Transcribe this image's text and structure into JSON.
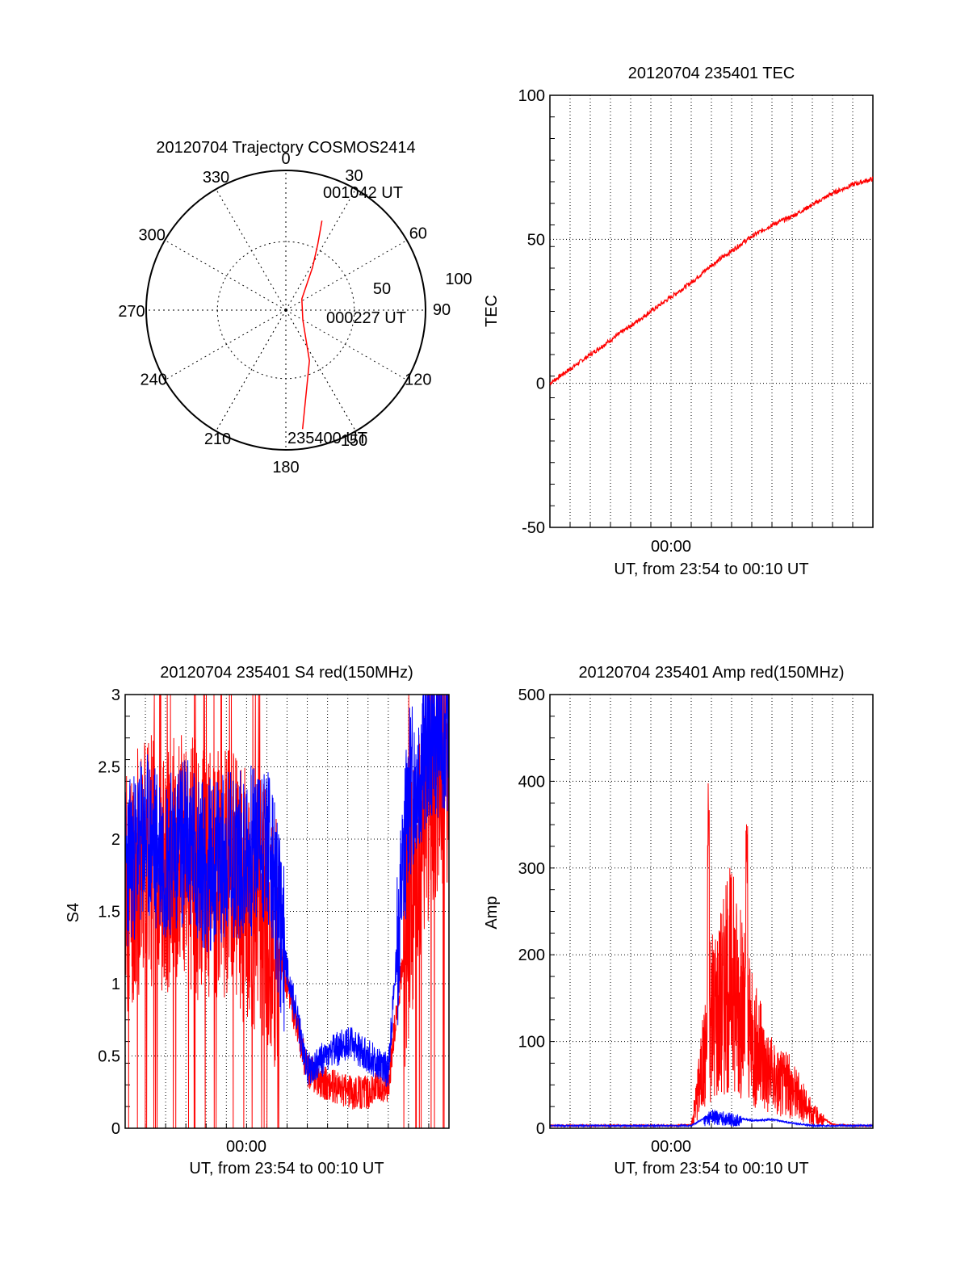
{
  "colors": {
    "red": "#ff0000",
    "blue": "#0000ff",
    "axis": "#000000",
    "grid": "#000000"
  },
  "chart_data": [
    {
      "type": "polar",
      "title": "20120704 Trajectory COSMOS2414",
      "azimuth_labels": [
        "0",
        "30",
        "60",
        "90",
        "120",
        "150",
        "180",
        "210",
        "240",
        "270",
        "300",
        "330"
      ],
      "radial_labels": [
        "50",
        "100"
      ],
      "grid": true,
      "series": [
        {
          "color": "#ff0000",
          "points": [
            {
              "az": 22,
              "r": 69
            },
            {
              "az": 26,
              "r": 52
            },
            {
              "az": 32,
              "r": 36
            },
            {
              "az": 55,
              "r": 14
            },
            {
              "az": 120,
              "r": 14
            },
            {
              "az": 155,
              "r": 40
            },
            {
              "az": 172,
              "r": 86
            }
          ]
        }
      ],
      "annotations": [
        "001042 UT",
        "000227 UT",
        "235400 UT"
      ]
    },
    {
      "type": "line",
      "title": "20120704 235401 TEC",
      "xlabel": "UT, from 23:54 to 00:10 UT",
      "ylabel": "TEC",
      "x_range": [
        "23:54",
        "00:10"
      ],
      "x_tick_labels": [
        "00:00"
      ],
      "y_ticks": [
        -50,
        0,
        50,
        100
      ],
      "ylim": [
        -50,
        100
      ],
      "grid": true,
      "series": [
        {
          "color": "#ff0000",
          "x": [
            "23:54",
            "23:55",
            "23:56",
            "23:57",
            "23:58",
            "23:59",
            "00:00",
            "00:01",
            "00:02",
            "00:03",
            "00:04",
            "00:05",
            "00:06",
            "00:07",
            "00:08",
            "00:09",
            "00:10"
          ],
          "values": [
            0,
            5,
            10,
            15,
            20,
            25,
            30,
            35,
            41,
            46,
            51,
            55,
            58,
            62,
            66,
            69,
            71
          ]
        }
      ]
    },
    {
      "type": "line",
      "title": "20120704 235401 S4 red(150MHz)",
      "xlabel": "UT, from 23:54 to 00:10 UT",
      "ylabel": "S4",
      "x_range": [
        "23:54",
        "00:10"
      ],
      "x_tick_labels": [
        "00:00"
      ],
      "y_ticks": [
        "0",
        "0.5",
        "1",
        "1.5",
        "2",
        "2.5",
        "3"
      ],
      "ylim": [
        0,
        3
      ],
      "grid": true,
      "series": [
        {
          "color": "#ff0000",
          "x": [
            "23:54",
            "23:55",
            "23:56",
            "23:57",
            "23:58",
            "23:59",
            "00:00",
            "00:01",
            "00:02",
            "00:03",
            "00:04",
            "00:05",
            "00:06",
            "00:07",
            "00:08",
            "00:09",
            "00:10"
          ],
          "values": [
            1.6,
            1.9,
            1.8,
            1.9,
            1.7,
            1.8,
            1.6,
            1.5,
            1.0,
            0.4,
            0.3,
            0.25,
            0.25,
            0.3,
            1.5,
            2.3,
            2.6
          ]
        },
        {
          "color": "#0000ff",
          "x": [
            "23:54",
            "23:55",
            "23:56",
            "23:57",
            "23:58",
            "23:59",
            "00:00",
            "00:01",
            "00:02",
            "00:03",
            "00:04",
            "00:05",
            "00:06",
            "00:07",
            "00:08",
            "00:09",
            "00:10"
          ],
          "values": [
            1.8,
            2.0,
            1.9,
            2.0,
            1.8,
            1.9,
            1.9,
            2.0,
            1.1,
            0.4,
            0.5,
            0.6,
            0.5,
            0.4,
            2.3,
            2.7,
            2.8
          ]
        }
      ]
    },
    {
      "type": "line",
      "title": "20120704 235401 Amp red(150MHz)",
      "xlabel": "UT, from 23:54 to 00:10 UT",
      "ylabel": "Amp",
      "x_range": [
        "23:54",
        "00:10"
      ],
      "x_tick_labels": [
        "00:00"
      ],
      "y_ticks": [
        0,
        100,
        200,
        300,
        400,
        500
      ],
      "ylim": [
        0,
        500
      ],
      "grid": true,
      "series": [
        {
          "color": "#ff0000",
          "x": [
            "23:54",
            "23:55",
            "23:56",
            "23:57",
            "23:58",
            "23:59",
            "00:00",
            "00:01",
            "00:02",
            "00:03",
            "00:04",
            "00:05",
            "00:06",
            "00:07",
            "00:08",
            "00:09",
            "00:10"
          ],
          "values": [
            2,
            2,
            2,
            2,
            2,
            2,
            2,
            3,
            150,
            210,
            120,
            70,
            55,
            20,
            3,
            2,
            2
          ],
          "peaks": [
            420,
            370
          ]
        },
        {
          "color": "#0000ff",
          "x": [
            "23:54",
            "23:55",
            "23:56",
            "23:57",
            "23:58",
            "23:59",
            "00:00",
            "00:01",
            "00:02",
            "00:03",
            "00:04",
            "00:05",
            "00:06",
            "00:07",
            "00:08",
            "00:09",
            "00:10"
          ],
          "values": [
            2,
            2,
            2,
            2,
            2,
            2,
            2,
            2,
            15,
            12,
            8,
            9,
            5,
            2,
            2,
            2,
            2
          ]
        }
      ]
    }
  ]
}
